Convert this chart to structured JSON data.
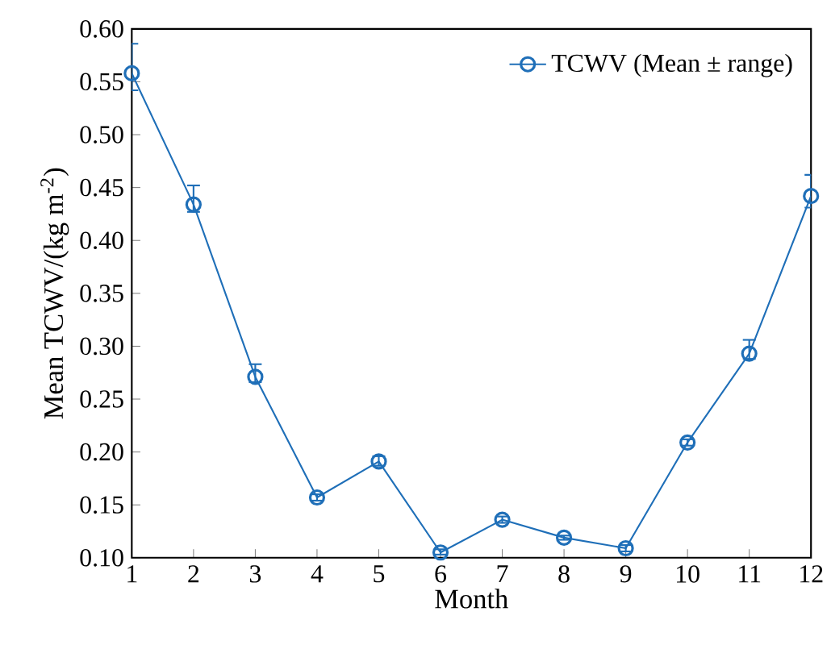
{
  "chart_data": {
    "type": "line",
    "xlabel": "Month",
    "ylabel": "Mean TCWV/(kg m$^{-2}$)",
    "x": [
      1,
      2,
      3,
      4,
      5,
      6,
      7,
      8,
      9,
      10,
      11,
      12
    ],
    "series": [
      {
        "name": "TCWV (Mean ± range)",
        "color": "#1f6fb8",
        "values": [
          0.558,
          0.434,
          0.271,
          0.157,
          0.191,
          0.105,
          0.136,
          0.119,
          0.109,
          0.209,
          0.293,
          0.442
        ],
        "errors": [
          [
            0.542,
            0.586
          ],
          [
            0.427,
            0.452
          ],
          [
            0.266,
            0.283
          ],
          [
            0.154,
            0.16
          ],
          [
            0.187,
            0.196
          ],
          [
            0.103,
            0.108
          ],
          [
            0.133,
            0.139
          ],
          [
            0.117,
            0.121
          ],
          [
            0.106,
            0.112
          ],
          [
            0.206,
            0.212
          ],
          [
            0.288,
            0.306
          ],
          [
            0.431,
            0.462
          ]
        ]
      }
    ],
    "xlim": [
      1,
      12
    ],
    "xticks": [
      1,
      2,
      3,
      4,
      5,
      6,
      7,
      8,
      9,
      10,
      11,
      12
    ],
    "ylim": [
      0.1,
      0.6
    ],
    "yticks": [
      {
        "value": 0.1,
        "label": "0.10"
      },
      {
        "value": 0.15,
        "label": "0.15"
      },
      {
        "value": 0.2,
        "label": "0.20"
      },
      {
        "value": 0.25,
        "label": "0.25"
      },
      {
        "value": 0.3,
        "label": "0.30"
      },
      {
        "value": 0.35,
        "label": "0.35"
      },
      {
        "value": 0.4,
        "label": "0.40"
      },
      {
        "value": 0.45,
        "label": "0.45"
      },
      {
        "value": 0.5,
        "label": "0.50"
      },
      {
        "value": 0.55,
        "label": "0.55"
      },
      {
        "value": 0.6,
        "label": "0.60"
      }
    ],
    "legend": "top right",
    "marker": "circle",
    "line_style": "solid",
    "grid": false
  }
}
